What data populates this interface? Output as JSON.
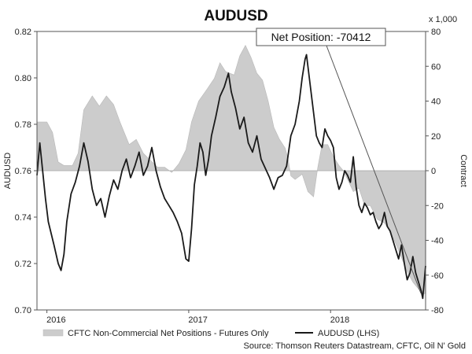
{
  "chart_data": {
    "type": "line",
    "title": "AUDUSD",
    "ylabel_left": "AUDUSD",
    "ylabel_right": "Contract",
    "right_axis_multiplier": "x 1,000",
    "ylim_left": [
      0.7,
      0.82
    ],
    "yticks_left": [
      "0.82",
      "0.80",
      "0.78",
      "0.76",
      "0.74",
      "0.72",
      "0.70"
    ],
    "ylim_right": [
      -80,
      80
    ],
    "yticks_right": [
      "80",
      "60",
      "40",
      "20",
      "0",
      "-20",
      "-40",
      "-60",
      "-80"
    ],
    "x_range": [
      2015.93,
      2018.67
    ],
    "x_ticks": [
      {
        "label": "2016",
        "x": 2016.0
      },
      {
        "label": "2017",
        "x": 2017.0
      },
      {
        "label": "2018",
        "x": 2018.0
      }
    ],
    "annotation": {
      "text": "Net Position: -70412",
      "value": -70412
    },
    "legend": [
      {
        "label": "CFTC Non-Commercial Net Positions - Futures Only",
        "style": "area",
        "color": "#cccccc"
      },
      {
        "label": "AUDUSD (LHS)",
        "style": "line",
        "color": "#1a1a1a"
      }
    ],
    "source": "Source: Thomson Reuters Datastream, CFTC, Oil N' Gold",
    "series": [
      {
        "name": "CFTC Non-Commercial Net Positions - Futures Only",
        "axis": "right",
        "type": "area",
        "points": [
          [
            2015.93,
            28
          ],
          [
            2016.0,
            28
          ],
          [
            2016.04,
            22
          ],
          [
            2016.08,
            5
          ],
          [
            2016.12,
            3
          ],
          [
            2016.18,
            3
          ],
          [
            2016.22,
            10
          ],
          [
            2016.26,
            35
          ],
          [
            2016.32,
            43
          ],
          [
            2016.37,
            37
          ],
          [
            2016.42,
            43
          ],
          [
            2016.47,
            38
          ],
          [
            2016.52,
            27
          ],
          [
            2016.58,
            15
          ],
          [
            2016.63,
            18
          ],
          [
            2016.68,
            10
          ],
          [
            2016.73,
            6
          ],
          [
            2016.78,
            2
          ],
          [
            2016.83,
            2
          ],
          [
            2016.88,
            -1
          ],
          [
            2016.93,
            4
          ],
          [
            2016.98,
            12
          ],
          [
            2017.02,
            28
          ],
          [
            2017.07,
            40
          ],
          [
            2017.13,
            47
          ],
          [
            2017.18,
            53
          ],
          [
            2017.22,
            62
          ],
          [
            2017.26,
            57
          ],
          [
            2017.32,
            55
          ],
          [
            2017.36,
            66
          ],
          [
            2017.4,
            72
          ],
          [
            2017.44,
            65
          ],
          [
            2017.48,
            56
          ],
          [
            2017.52,
            52
          ],
          [
            2017.56,
            40
          ],
          [
            2017.6,
            25
          ],
          [
            2017.64,
            18
          ],
          [
            2017.68,
            13
          ],
          [
            2017.7,
            7
          ],
          [
            2017.72,
            -3
          ],
          [
            2017.75,
            -5
          ],
          [
            2017.8,
            -2
          ],
          [
            2017.84,
            -12
          ],
          [
            2017.88,
            -15
          ],
          [
            2017.91,
            2
          ],
          [
            2017.94,
            15
          ],
          [
            2017.98,
            15
          ],
          [
            2018.02,
            8
          ],
          [
            2018.06,
            3
          ],
          [
            2018.09,
            0
          ],
          [
            2018.12,
            -5
          ],
          [
            2018.16,
            -12
          ],
          [
            2018.2,
            -10
          ],
          [
            2018.24,
            -20
          ],
          [
            2018.28,
            -20
          ],
          [
            2018.33,
            -28
          ],
          [
            2018.38,
            -30
          ],
          [
            2018.42,
            -35
          ],
          [
            2018.46,
            -42
          ],
          [
            2018.5,
            -50
          ],
          [
            2018.54,
            -58
          ],
          [
            2018.58,
            -64
          ],
          [
            2018.62,
            -68
          ],
          [
            2018.65,
            -71
          ],
          [
            2018.67,
            -70.4
          ]
        ]
      },
      {
        "name": "AUDUSD (LHS)",
        "axis": "left",
        "type": "line",
        "points": [
          [
            2015.93,
            0.758
          ],
          [
            2015.95,
            0.772
          ],
          [
            2015.97,
            0.76
          ],
          [
            2015.99,
            0.748
          ],
          [
            2016.01,
            0.738
          ],
          [
            2016.03,
            0.733
          ],
          [
            2016.05,
            0.728
          ],
          [
            2016.08,
            0.72
          ],
          [
            2016.1,
            0.717
          ],
          [
            2016.12,
            0.724
          ],
          [
            2016.14,
            0.738
          ],
          [
            2016.17,
            0.75
          ],
          [
            2016.2,
            0.755
          ],
          [
            2016.23,
            0.762
          ],
          [
            2016.26,
            0.772
          ],
          [
            2016.29,
            0.764
          ],
          [
            2016.32,
            0.752
          ],
          [
            2016.35,
            0.745
          ],
          [
            2016.38,
            0.748
          ],
          [
            2016.41,
            0.74
          ],
          [
            2016.44,
            0.749
          ],
          [
            2016.47,
            0.756
          ],
          [
            2016.5,
            0.752
          ],
          [
            2016.53,
            0.76
          ],
          [
            2016.56,
            0.765
          ],
          [
            2016.59,
            0.757
          ],
          [
            2016.62,
            0.762
          ],
          [
            2016.65,
            0.768
          ],
          [
            2016.68,
            0.758
          ],
          [
            2016.71,
            0.762
          ],
          [
            2016.74,
            0.77
          ],
          [
            2016.77,
            0.76
          ],
          [
            2016.8,
            0.753
          ],
          [
            2016.83,
            0.748
          ],
          [
            2016.86,
            0.745
          ],
          [
            2016.89,
            0.742
          ],
          [
            2016.92,
            0.738
          ],
          [
            2016.95,
            0.733
          ],
          [
            2016.98,
            0.722
          ],
          [
            2017.0,
            0.721
          ],
          [
            2017.02,
            0.735
          ],
          [
            2017.04,
            0.754
          ],
          [
            2017.06,
            0.762
          ],
          [
            2017.08,
            0.772
          ],
          [
            2017.1,
            0.768
          ],
          [
            2017.12,
            0.758
          ],
          [
            2017.14,
            0.765
          ],
          [
            2017.16,
            0.775
          ],
          [
            2017.19,
            0.783
          ],
          [
            2017.22,
            0.792
          ],
          [
            2017.25,
            0.796
          ],
          [
            2017.28,
            0.802
          ],
          [
            2017.3,
            0.794
          ],
          [
            2017.33,
            0.787
          ],
          [
            2017.36,
            0.778
          ],
          [
            2017.39,
            0.783
          ],
          [
            2017.42,
            0.772
          ],
          [
            2017.45,
            0.768
          ],
          [
            2017.48,
            0.775
          ],
          [
            2017.51,
            0.765
          ],
          [
            2017.54,
            0.761
          ],
          [
            2017.57,
            0.757
          ],
          [
            2017.6,
            0.752
          ],
          [
            2017.63,
            0.757
          ],
          [
            2017.66,
            0.758
          ],
          [
            2017.69,
            0.762
          ],
          [
            2017.72,
            0.775
          ],
          [
            2017.75,
            0.78
          ],
          [
            2017.78,
            0.79
          ],
          [
            2017.8,
            0.8
          ],
          [
            2017.82,
            0.808
          ],
          [
            2017.83,
            0.81
          ],
          [
            2017.84,
            0.805
          ],
          [
            2017.86,
            0.795
          ],
          [
            2017.88,
            0.785
          ],
          [
            2017.9,
            0.775
          ],
          [
            2017.92,
            0.772
          ],
          [
            2017.94,
            0.77
          ],
          [
            2017.96,
            0.778
          ],
          [
            2017.98,
            0.775
          ],
          [
            2018.0,
            0.773
          ],
          [
            2018.02,
            0.77
          ],
          [
            2018.04,
            0.757
          ],
          [
            2018.06,
            0.752
          ],
          [
            2018.08,
            0.755
          ],
          [
            2018.1,
            0.76
          ],
          [
            2018.12,
            0.758
          ],
          [
            2018.14,
            0.755
          ],
          [
            2018.16,
            0.766
          ],
          [
            2018.18,
            0.753
          ],
          [
            2018.2,
            0.745
          ],
          [
            2018.22,
            0.742
          ],
          [
            2018.24,
            0.746
          ],
          [
            2018.26,
            0.744
          ],
          [
            2018.28,
            0.741
          ],
          [
            2018.3,
            0.742
          ],
          [
            2018.32,
            0.738
          ],
          [
            2018.34,
            0.735
          ],
          [
            2018.36,
            0.737
          ],
          [
            2018.38,
            0.742
          ],
          [
            2018.4,
            0.736
          ],
          [
            2018.42,
            0.734
          ],
          [
            2018.44,
            0.73
          ],
          [
            2018.46,
            0.726
          ],
          [
            2018.48,
            0.722
          ],
          [
            2018.5,
            0.728
          ],
          [
            2018.52,
            0.72
          ],
          [
            2018.54,
            0.713
          ],
          [
            2018.56,
            0.716
          ],
          [
            2018.58,
            0.723
          ],
          [
            2018.6,
            0.716
          ],
          [
            2018.62,
            0.712
          ],
          [
            2018.64,
            0.708
          ],
          [
            2018.65,
            0.705
          ],
          [
            2018.66,
            0.712
          ],
          [
            2018.67,
            0.719
          ]
        ]
      }
    ]
  }
}
